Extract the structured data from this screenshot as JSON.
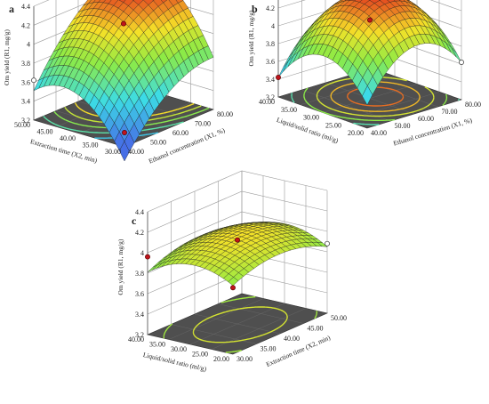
{
  "chart_data": [
    {
      "type": "surface",
      "panel_label": "a",
      "zlabel": "Om yield (R1, mg/g)",
      "xlabel": "Ethanol concentration (X1, %)",
      "ylabel": "Extraction time (X2, min)",
      "x_ticks": [
        "40.00",
        "50.00",
        "60.00",
        "70.00",
        "80.00"
      ],
      "y_ticks": [
        "30.00",
        "35.00",
        "40.00",
        "45.00",
        "50.00"
      ],
      "z_ticks": [
        "3.2",
        "3.4",
        "3.6",
        "3.8",
        "4",
        "4.2",
        "4.4"
      ],
      "x_range": [
        40,
        80
      ],
      "y_range": [
        30,
        50
      ],
      "z_range": [
        3.2,
        4.4
      ],
      "surface": {
        "c": 4.18,
        "ax": 0.4,
        "ay": 0.28,
        "ax2": -0.18,
        "ay2": -0.32,
        "axy": 0.05
      },
      "design_points": [
        {
          "x": 60,
          "y": 40,
          "z": 4.16,
          "above": true
        },
        {
          "x": 80,
          "y": 50,
          "z": 4.22,
          "above": true
        },
        {
          "x": 40,
          "y": 30,
          "z": 3.35,
          "above": true
        },
        {
          "x": 40,
          "y": 50,
          "z": 3.62,
          "above": false
        }
      ]
    },
    {
      "type": "surface",
      "panel_label": "b",
      "zlabel": "Om yield (R1, mg/g)",
      "xlabel": "Ethanol concentration (X1, %)",
      "ylabel": "Liquid/solid ratio (ml/g)",
      "x_ticks": [
        "40.00",
        "50.00",
        "60.00",
        "70.00",
        "80.00"
      ],
      "y_ticks": [
        "20.00",
        "25.00",
        "30.00",
        "35.00",
        "40.00"
      ],
      "z_ticks": [
        "3.2",
        "3.4",
        "3.6",
        "3.8",
        "4",
        "4.2",
        "4.4"
      ],
      "x_range": [
        40,
        80
      ],
      "y_range": [
        20,
        40
      ],
      "z_range": [
        3.2,
        4.4
      ],
      "surface": {
        "c": 4.36,
        "ax": 0.1,
        "ay": 0.0,
        "ax2": -0.42,
        "ay2": -0.4,
        "axy": 0.02
      },
      "design_points": [
        {
          "x": 60,
          "y": 30,
          "z": 4.08,
          "above": true
        },
        {
          "x": 60,
          "y": 30,
          "z": 4.36,
          "above": true
        },
        {
          "x": 80,
          "y": 20,
          "z": 3.62,
          "above": false
        },
        {
          "x": 40,
          "y": 40,
          "z": 3.42,
          "above": true
        }
      ]
    },
    {
      "type": "surface",
      "panel_label": "c",
      "zlabel": "Om yield (R1, mg/g)",
      "xlabel": "Extraction time (X2, min)",
      "ylabel": "Liquid/solid ratio (ml/g)",
      "x_ticks": [
        "30.00",
        "35.00",
        "40.00",
        "45.00",
        "50.00"
      ],
      "y_ticks": [
        "20.00",
        "25.00",
        "30.00",
        "35.00",
        "40.00"
      ],
      "z_ticks": [
        "3.2",
        "3.4",
        "3.6",
        "3.8",
        "4",
        "4.2",
        "4.4"
      ],
      "x_range": [
        30,
        50
      ],
      "y_range": [
        20,
        40
      ],
      "z_range": [
        3.2,
        4.4
      ],
      "surface": {
        "c": 4.1,
        "ax": 0.0,
        "ay": -0.02,
        "ax2": -0.12,
        "ay2": -0.14,
        "axy": 0.01
      },
      "design_points": [
        {
          "x": 40,
          "y": 30,
          "z": 4.02,
          "above": true
        },
        {
          "x": 30,
          "y": 40,
          "z": 3.96,
          "above": true
        },
        {
          "x": 50,
          "y": 20,
          "z": 3.88,
          "above": false
        },
        {
          "x": 30,
          "y": 20,
          "z": 3.85,
          "above": true
        }
      ]
    }
  ]
}
